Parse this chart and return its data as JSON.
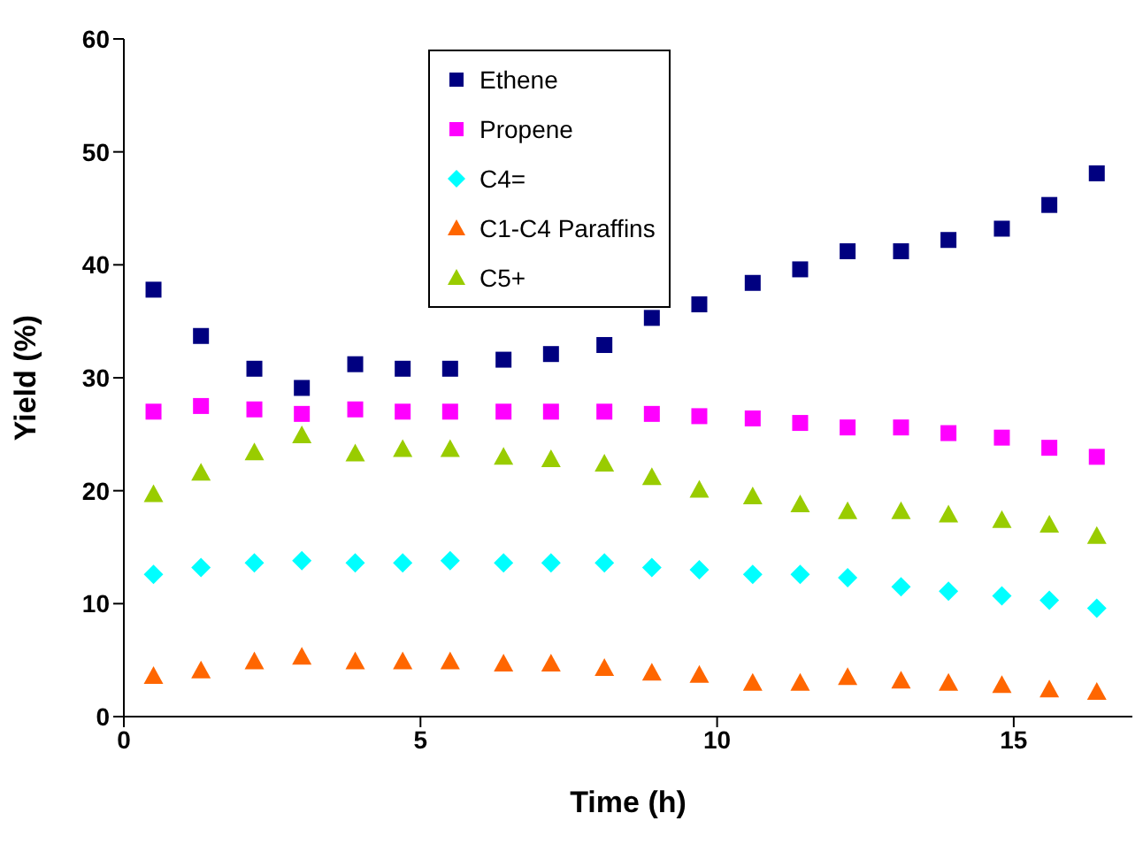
{
  "chart_data": {
    "type": "scatter",
    "xlabel": "Time (h)",
    "ylabel": "Yield (%)",
    "x": [
      0.5,
      1.3,
      2.2,
      3.0,
      3.9,
      4.7,
      5.5,
      6.4,
      7.2,
      8.1,
      8.9,
      9.7,
      10.6,
      11.4,
      12.2,
      13.1,
      13.9,
      14.8,
      15.6,
      16.4
    ],
    "series": [
      {
        "name": "Ethene",
        "color": "#000080",
        "marker": "square",
        "values": [
          37.8,
          33.7,
          30.8,
          29.1,
          31.2,
          30.8,
          30.8,
          31.6,
          32.1,
          32.9,
          35.3,
          36.5,
          38.4,
          39.6,
          41.2,
          41.2,
          42.2,
          43.2,
          45.3,
          48.1
        ]
      },
      {
        "name": "Propene",
        "color": "#ff00ff",
        "marker": "square",
        "values": [
          27.0,
          27.5,
          27.2,
          26.8,
          27.2,
          27.0,
          27.0,
          27.0,
          27.0,
          27.0,
          26.8,
          26.6,
          26.4,
          26.0,
          25.6,
          25.6,
          25.1,
          24.7,
          23.8,
          23.0
        ]
      },
      {
        "name": "C4=",
        "color": "#00ffff",
        "marker": "diamond",
        "values": [
          12.6,
          13.2,
          13.6,
          13.8,
          13.6,
          13.6,
          13.8,
          13.6,
          13.6,
          13.6,
          13.2,
          13.0,
          12.6,
          12.6,
          12.3,
          11.5,
          11.1,
          10.7,
          10.3,
          9.6
        ]
      },
      {
        "name": "C1-C4 Paraffins",
        "color": "#ff6600",
        "marker": "triangle",
        "values": [
          3.6,
          4.1,
          4.9,
          5.3,
          4.9,
          4.9,
          4.9,
          4.7,
          4.7,
          4.3,
          3.9,
          3.7,
          3.0,
          3.0,
          3.5,
          3.2,
          3.0,
          2.8,
          2.4,
          2.2
        ]
      },
      {
        "name": "C5+",
        "color": "#99cc00",
        "marker": "triangle",
        "values": [
          19.7,
          21.6,
          23.4,
          24.9,
          23.3,
          23.7,
          23.7,
          23.0,
          22.8,
          22.4,
          21.2,
          20.1,
          19.5,
          18.8,
          18.2,
          18.2,
          17.9,
          17.4,
          17.0,
          16.0
        ]
      }
    ],
    "xlim": [
      0,
      17
    ],
    "xticks": [
      0,
      5,
      10,
      15
    ],
    "ylim": [
      0,
      60
    ],
    "yticks": [
      0,
      10,
      20,
      30,
      40,
      50,
      60
    ],
    "legend": "top",
    "grid": false
  }
}
